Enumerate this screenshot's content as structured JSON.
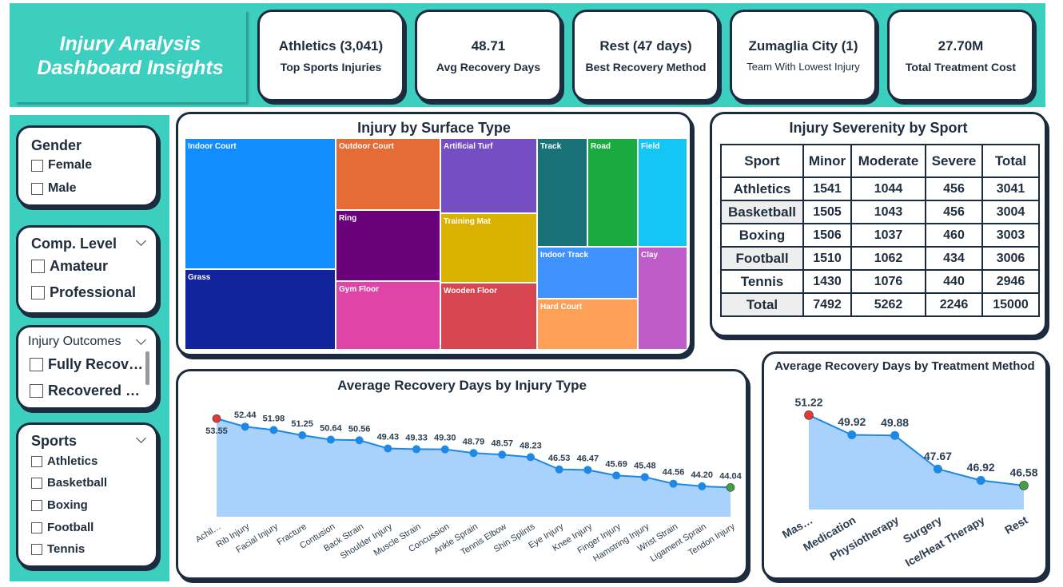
{
  "title": {
    "line1": "Injury Analysis",
    "line2": "Dashboard Insights"
  },
  "kpis": [
    {
      "value": "Athletics (3,041)",
      "label": "Top Sports Injuries"
    },
    {
      "value": "48.71",
      "label": "Avg Recovery Days"
    },
    {
      "value": "Rest (47 days)",
      "label": "Best Recovery Method"
    },
    {
      "value": "Zumaglia City (1)",
      "label": "Team With Lowest Injury"
    },
    {
      "value": "27.70M",
      "label": "Total Treatment Cost"
    }
  ],
  "slicers": {
    "gender": {
      "title": "Gender",
      "options": [
        "Female",
        "Male"
      ]
    },
    "comp_level": {
      "title": "Comp. Level",
      "options": [
        "Amateur",
        "Professional"
      ]
    },
    "outcomes": {
      "title": "Injury Outcomes",
      "options": [
        "Fully Recov…",
        "Recovered …"
      ]
    },
    "sports": {
      "title": "Sports",
      "options": [
        "Athletics",
        "Basketball",
        "Boxing",
        "Football",
        "Tennis"
      ]
    }
  },
  "colors": {
    "accent": "#3ccfc0",
    "border": "#1d2b3e",
    "line": "#1e88e5",
    "area": "#a8d1fb",
    "max_dot": "#e53935",
    "min_dot": "#43a047"
  },
  "treemap": {
    "title": "Injury by Surface Type",
    "tiles": [
      {
        "label": "Indoor Court",
        "color": "#118dff"
      },
      {
        "label": "Grass",
        "color": "#12239e"
      },
      {
        "label": "Outdoor Court",
        "color": "#e66c37"
      },
      {
        "label": "Ring",
        "color": "#6b007b"
      },
      {
        "label": "Gym Floor",
        "color": "#e044a7"
      },
      {
        "label": "Artificial Turf",
        "color": "#744ec2"
      },
      {
        "label": "Training Mat",
        "color": "#d9b300"
      },
      {
        "label": "Wooden Floor",
        "color": "#d64550"
      },
      {
        "label": "Track",
        "color": "#197278"
      },
      {
        "label": "Road",
        "color": "#1aab40"
      },
      {
        "label": "Field",
        "color": "#15c6f4"
      },
      {
        "label": "Indoor Track",
        "color": "#4092ff"
      },
      {
        "label": "Hard Court",
        "color": "#ffa058"
      },
      {
        "label": "Clay",
        "color": "#be5dc9"
      }
    ]
  },
  "severity": {
    "title": "Injury Severenity by Sport",
    "headers": [
      "Sport",
      "Minor",
      "Moderate",
      "Severe",
      "Total"
    ],
    "rows": [
      [
        "Athletics",
        "1541",
        "1044",
        "456",
        "3041"
      ],
      [
        "Basketball",
        "1505",
        "1043",
        "456",
        "3004"
      ],
      [
        "Boxing",
        "1506",
        "1037",
        "460",
        "3003"
      ],
      [
        "Football",
        "1510",
        "1062",
        "434",
        "3006"
      ],
      [
        "Tennis",
        "1430",
        "1076",
        "440",
        "2946"
      ],
      [
        "Total",
        "7492",
        "5262",
        "2246",
        "15000"
      ]
    ]
  },
  "chart_data": [
    {
      "type": "area",
      "title": "Average Recovery Days by Injury Type",
      "categories": [
        "Achil…",
        "Rib Injury",
        "Facial Injury",
        "Fracture",
        "Contusion",
        "Back Strain",
        "Shoulder Injury",
        "Muscle Strain",
        "Concussion",
        "Ankle Sprain",
        "Tennis Elbow",
        "Shin Splints",
        "Eye Injury",
        "Knee Injury",
        "Finger Injury",
        "Hamstring Injury",
        "Wrist Strain",
        "Ligament Sprain",
        "Tendon Injury"
      ],
      "values": [
        53.55,
        52.44,
        51.98,
        51.25,
        50.64,
        50.56,
        49.43,
        49.33,
        49.3,
        48.79,
        48.57,
        48.23,
        46.53,
        46.47,
        45.69,
        45.48,
        44.56,
        44.2,
        44.04
      ],
      "labels": [
        "53.55",
        "52.44",
        "51.98",
        "51.25",
        "50.64",
        "50.56",
        "49.43",
        "49.33",
        "49.30",
        "48.79",
        "48.57",
        "48.23",
        "46.53",
        "46.47",
        "45.69",
        "45.48",
        "44.56",
        "44.20",
        "44.04"
      ],
      "ylim": [
        40,
        55
      ]
    },
    {
      "type": "area",
      "title": "Average Recovery Days by Treatment Method",
      "categories": [
        "Mas…",
        "Medication",
        "Physiotherapy",
        "Surgery",
        "Ice/Heat Therapy",
        "Rest"
      ],
      "values": [
        51.22,
        49.92,
        49.88,
        47.67,
        46.92,
        46.58
      ],
      "labels": [
        "51.22",
        "49.92",
        "49.88",
        "47.67",
        "46.92",
        "46.58"
      ],
      "ylim": [
        45,
        52
      ]
    }
  ]
}
